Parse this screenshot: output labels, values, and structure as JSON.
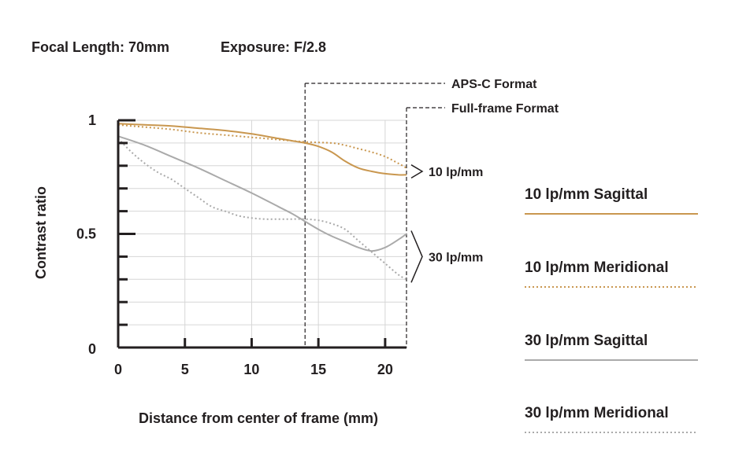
{
  "header": {
    "focal": "Focal Length: 70mm",
    "exposure": "Exposure: F/2.8"
  },
  "chart_data": {
    "type": "line",
    "xlabel": "Distance from center of frame (mm)",
    "ylabel": "Contrast ratio",
    "xlim": [
      0,
      21.6
    ],
    "ylim": [
      0,
      1
    ],
    "xticks": [
      0,
      5,
      10,
      15,
      20
    ],
    "xtick_labels": [
      "0",
      "5",
      "10",
      "15",
      "20"
    ],
    "yticks": [
      0,
      0.5,
      1
    ],
    "ytick_labels": [
      "0",
      "0.5",
      "1"
    ],
    "grid": true,
    "series": [
      {
        "name": "10 lp/mm Sagittal",
        "color": "#c9974f",
        "style": "solid",
        "x": [
          0,
          2,
          4,
          6,
          8,
          10,
          12,
          13,
          14,
          15,
          16,
          17,
          18,
          19,
          20,
          21,
          21.6
        ],
        "y": [
          0.985,
          0.98,
          0.975,
          0.965,
          0.955,
          0.94,
          0.92,
          0.91,
          0.9,
          0.885,
          0.86,
          0.82,
          0.79,
          0.775,
          0.765,
          0.76,
          0.76
        ]
      },
      {
        "name": "10 lp/mm Meridional",
        "color": "#c9974f",
        "style": "dotted",
        "x": [
          0,
          2,
          4,
          6,
          8,
          10,
          12,
          14,
          16,
          17,
          18,
          19,
          20,
          21,
          21.6
        ],
        "y": [
          0.98,
          0.97,
          0.96,
          0.945,
          0.935,
          0.925,
          0.915,
          0.905,
          0.9,
          0.89,
          0.875,
          0.86,
          0.84,
          0.81,
          0.79
        ]
      },
      {
        "name": "30 lp/mm Sagittal",
        "color": "#aaaaaa",
        "style": "solid",
        "x": [
          0,
          2,
          4,
          6,
          8,
          10,
          12,
          13,
          14,
          15,
          16,
          17,
          18,
          19,
          20,
          21,
          21.6
        ],
        "y": [
          0.93,
          0.89,
          0.84,
          0.79,
          0.735,
          0.68,
          0.62,
          0.59,
          0.555,
          0.52,
          0.49,
          0.465,
          0.44,
          0.425,
          0.44,
          0.475,
          0.5
        ]
      },
      {
        "name": "30 lp/mm Meridional",
        "color": "#aaaaaa",
        "style": "dotted",
        "x": [
          0,
          1,
          2,
          3,
          4,
          5,
          6,
          7,
          8,
          9,
          10,
          11,
          12,
          13,
          14,
          15,
          16,
          17,
          18,
          19,
          20,
          21,
          21.6
        ],
        "y": [
          0.92,
          0.86,
          0.81,
          0.77,
          0.74,
          0.7,
          0.66,
          0.62,
          0.6,
          0.58,
          0.57,
          0.565,
          0.565,
          0.565,
          0.565,
          0.56,
          0.545,
          0.52,
          0.47,
          0.42,
          0.37,
          0.32,
          0.3
        ]
      }
    ],
    "format_markers": [
      {
        "label": "APS-C Format",
        "x": 14
      },
      {
        "label": "Full-frame Format",
        "x": 21.6
      }
    ],
    "group_labels": [
      {
        "label": "10 lp/mm",
        "y_range": [
          0.76,
          0.79
        ]
      },
      {
        "label": "30 lp/mm",
        "y_range": [
          0.3,
          0.5
        ]
      }
    ],
    "legend": {
      "placement": "right",
      "items": [
        {
          "label": "10 lp/mm Sagittal",
          "color": "#c9974f",
          "style": "solid"
        },
        {
          "label": "10 lp/mm Meridional",
          "color": "#c9974f",
          "style": "dotted"
        },
        {
          "label": "30 lp/mm Sagittal",
          "color": "#aaaaaa",
          "style": "solid"
        },
        {
          "label": "30 lp/mm Meridional",
          "color": "#aaaaaa",
          "style": "dotted"
        }
      ]
    }
  }
}
